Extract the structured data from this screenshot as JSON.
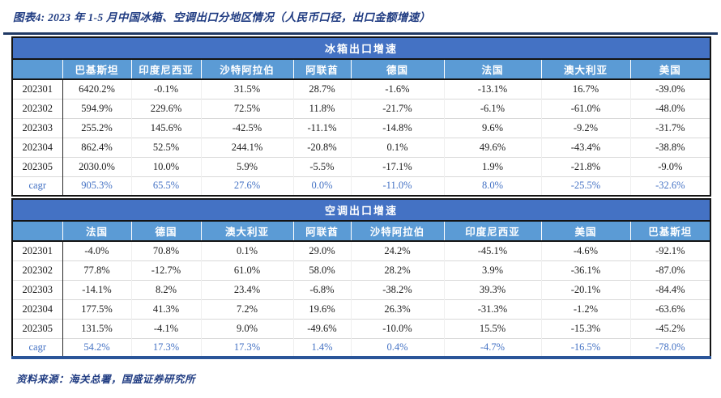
{
  "page": {
    "title": "图表4: 2023 年 1-5 月中国冰箱、空调出口分地区情况（人民币口径，出口金额增速）",
    "source_note": "资料来源：海关总署，国盛证券研究所"
  },
  "colors": {
    "group_header_bg": "#4472C4",
    "column_header_bg": "#5B9BD5",
    "header_text": "#FFFFFF",
    "cagr_text": "#4472C4",
    "caption_text": "#203C82",
    "top_divider_navy": "#1F3864",
    "bottom_rule_blue": "#2A5599"
  },
  "tables": [
    {
      "title": "冰箱出口增速",
      "columns": [
        "巴基斯坦",
        "印度尼西亚",
        "沙特阿拉伯",
        "阿联酋",
        "德国",
        "法国",
        "澳大利亚",
        "美国"
      ],
      "rows": [
        {
          "label": "202301",
          "highlight": false,
          "values": [
            "6420.2%",
            "-0.1%",
            "31.5%",
            "28.7%",
            "-1.6%",
            "-13.1%",
            "16.7%",
            "-39.0%"
          ]
        },
        {
          "label": "202302",
          "highlight": false,
          "values": [
            "594.9%",
            "229.6%",
            "72.5%",
            "11.8%",
            "-21.7%",
            "-6.1%",
            "-61.0%",
            "-48.0%"
          ]
        },
        {
          "label": "202303",
          "highlight": false,
          "values": [
            "255.2%",
            "145.6%",
            "-42.5%",
            "-11.1%",
            "-14.8%",
            "9.6%",
            "-9.2%",
            "-31.7%"
          ]
        },
        {
          "label": "202304",
          "highlight": false,
          "values": [
            "862.4%",
            "52.5%",
            "244.1%",
            "-20.8%",
            "0.1%",
            "49.6%",
            "-43.4%",
            "-38.8%"
          ]
        },
        {
          "label": "202305",
          "highlight": false,
          "values": [
            "2030.0%",
            "10.0%",
            "5.9%",
            "-5.5%",
            "-17.1%",
            "1.9%",
            "-21.8%",
            "-9.0%"
          ]
        },
        {
          "label": "cagr",
          "highlight": true,
          "values": [
            "905.3%",
            "65.5%",
            "27.6%",
            "0.0%",
            "-11.0%",
            "8.0%",
            "-25.5%",
            "-32.6%"
          ]
        }
      ]
    },
    {
      "title": "空调出口增速",
      "columns": [
        "法国",
        "德国",
        "澳大利亚",
        "阿联酋",
        "沙特阿拉伯",
        "印度尼西亚",
        "美国",
        "巴基斯坦"
      ],
      "rows": [
        {
          "label": "202301",
          "highlight": false,
          "values": [
            "-4.0%",
            "70.8%",
            "0.1%",
            "29.0%",
            "24.2%",
            "-45.1%",
            "-4.6%",
            "-92.1%"
          ]
        },
        {
          "label": "202302",
          "highlight": false,
          "values": [
            "77.8%",
            "-12.7%",
            "61.0%",
            "58.0%",
            "28.2%",
            "3.9%",
            "-36.1%",
            "-87.0%"
          ]
        },
        {
          "label": "202303",
          "highlight": false,
          "values": [
            "-14.1%",
            "8.2%",
            "23.4%",
            "-6.8%",
            "-38.2%",
            "39.3%",
            "-20.1%",
            "-84.4%"
          ]
        },
        {
          "label": "202304",
          "highlight": false,
          "values": [
            "177.5%",
            "41.3%",
            "7.2%",
            "19.6%",
            "26.3%",
            "-31.3%",
            "-1.2%",
            "-63.6%"
          ]
        },
        {
          "label": "202305",
          "highlight": false,
          "values": [
            "131.5%",
            "-4.1%",
            "9.0%",
            "-49.6%",
            "-10.0%",
            "15.5%",
            "-15.3%",
            "-45.2%"
          ]
        },
        {
          "label": "cagr",
          "highlight": true,
          "values": [
            "54.2%",
            "17.3%",
            "17.3%",
            "1.4%",
            "0.4%",
            "-4.7%",
            "-16.5%",
            "-78.0%"
          ]
        }
      ]
    }
  ]
}
